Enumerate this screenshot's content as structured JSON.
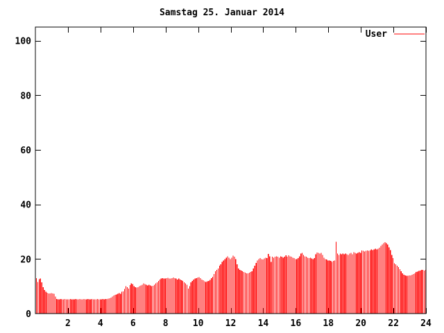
{
  "title": "Samstag 25. Januar 2014",
  "legend": {
    "label": "User",
    "line_color": "#ff0000"
  },
  "colors": {
    "background": "#ffffff",
    "bar": "#ff0000",
    "axis": "#000000",
    "text": "#000000"
  },
  "chart_data": {
    "type": "bar",
    "title": "Samstag 25. Januar 2014",
    "xlabel": "",
    "ylabel": "",
    "xlim": [
      0,
      24
    ],
    "ylim": [
      0,
      105
    ],
    "x_ticks": [
      2,
      4,
      6,
      8,
      10,
      12,
      14,
      16,
      18,
      20,
      22,
      24
    ],
    "y_ticks": [
      0,
      20,
      40,
      60,
      80,
      100
    ],
    "grid": false,
    "legend_position": "top-right",
    "interval_minutes": 5,
    "series": [
      {
        "name": "User",
        "color": "#ff0000",
        "values": [
          13.0,
          11.6,
          12.6,
          12.9,
          11.5,
          9.6,
          8.6,
          8.0,
          7.6,
          7.4,
          7.4,
          7.5,
          7.4,
          7.3,
          6.2,
          5.4,
          5.2,
          5.2,
          5.3,
          5.2,
          5.2,
          5.3,
          5.2,
          5.2,
          5.2,
          5.3,
          5.2,
          5.2,
          5.2,
          5.3,
          5.2,
          5.2,
          5.3,
          5.2,
          5.2,
          5.3,
          5.2,
          5.2,
          5.3,
          5.2,
          5.2,
          5.3,
          5.2,
          5.2,
          5.2,
          5.3,
          5.2,
          5.2,
          5.2,
          5.3,
          5.2,
          5.3,
          5.4,
          5.5,
          5.6,
          5.8,
          6.2,
          6.6,
          6.9,
          7.0,
          7.3,
          7.5,
          7.3,
          8.0,
          8.1,
          9.0,
          10.0,
          9.6,
          9.1,
          10.4,
          11.0,
          10.8,
          10.0,
          9.7,
          9.5,
          9.7,
          10.0,
          10.3,
          10.5,
          11.0,
          10.8,
          10.5,
          10.3,
          10.5,
          10.3,
          10.0,
          10.2,
          10.5,
          11.0,
          11.5,
          12.0,
          12.5,
          12.8,
          13.0,
          12.8,
          12.8,
          13.0,
          13.1,
          12.8,
          12.8,
          13.0,
          13.2,
          13.0,
          12.8,
          12.5,
          12.8,
          12.5,
          12.2,
          12.0,
          11.5,
          11.0,
          10.5,
          9.2,
          10.0,
          11.5,
          12.0,
          12.5,
          12.8,
          13.0,
          13.2,
          13.4,
          13.0,
          12.5,
          12.2,
          11.8,
          11.6,
          11.8,
          12.0,
          12.3,
          13.0,
          13.5,
          14.5,
          15.5,
          16.0,
          16.5,
          17.5,
          18.0,
          19.0,
          19.5,
          20.0,
          20.5,
          21.0,
          20.5,
          20.0,
          20.5,
          21.2,
          20.8,
          20.0,
          18.0,
          16.5,
          16.0,
          15.8,
          15.5,
          15.3,
          15.0,
          14.8,
          14.8,
          15.0,
          15.2,
          15.5,
          16.5,
          17.5,
          18.5,
          19.5,
          20.0,
          20.3,
          20.0,
          19.8,
          20.2,
          20.5,
          20.3,
          21.9,
          21.0,
          19.0,
          20.8,
          20.5,
          20.8,
          21.0,
          20.8,
          20.5,
          21.0,
          20.8,
          20.5,
          20.8,
          21.4,
          20.8,
          21.3,
          21.0,
          20.8,
          20.5,
          20.3,
          20.0,
          20.0,
          20.3,
          21.0,
          22.0,
          22.2,
          21.5,
          21.0,
          20.8,
          20.5,
          20.3,
          20.5,
          20.2,
          20.0,
          20.3,
          21.8,
          22.4,
          22.3,
          22.0,
          22.3,
          21.5,
          20.5,
          20.0,
          19.8,
          19.5,
          19.5,
          19.3,
          19.0,
          19.3,
          19.5,
          26.3,
          22.0,
          21.5,
          22.0,
          21.8,
          22.0,
          21.8,
          22.0,
          21.8,
          21.5,
          22.0,
          22.3,
          21.8,
          22.5,
          22.3,
          22.0,
          22.3,
          22.5,
          22.3,
          23.2,
          23.0,
          22.8,
          23.0,
          23.2,
          23.0,
          23.2,
          23.5,
          23.3,
          23.5,
          23.8,
          23.5,
          23.8,
          24.2,
          24.8,
          25.3,
          25.8,
          26.2,
          25.8,
          25.3,
          24.3,
          23.3,
          21.5,
          20.4,
          18.4,
          18.0,
          17.5,
          17.0,
          16.3,
          15.5,
          14.8,
          14.2,
          14.0,
          13.9,
          13.9,
          14.0,
          14.0,
          14.2,
          14.5,
          14.8,
          15.2,
          15.4,
          15.6,
          15.8,
          16.0,
          16.0,
          15.8,
          16.0
        ]
      }
    ]
  }
}
